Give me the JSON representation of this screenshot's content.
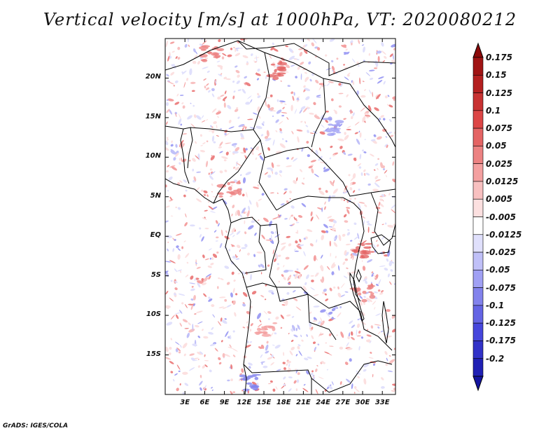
{
  "title": "Vertical velocity [m/s] at 1000hPa, VT: 2020080212",
  "footer": "GrADS: IGES/COLA",
  "map": {
    "lon_range": [
      0,
      35
    ],
    "lat_range": [
      -20,
      25
    ],
    "lat_ticks": [
      {
        "value": 20,
        "label": "20N"
      },
      {
        "value": 15,
        "label": "15N"
      },
      {
        "value": 10,
        "label": "10N"
      },
      {
        "value": 5,
        "label": "5N"
      },
      {
        "value": 0,
        "label": "EQ"
      },
      {
        "value": -5,
        "label": "5S"
      },
      {
        "value": -10,
        "label": "10S"
      },
      {
        "value": -15,
        "label": "15S"
      }
    ],
    "lon_ticks": [
      {
        "value": 3,
        "label": "3E"
      },
      {
        "value": 6,
        "label": "6E"
      },
      {
        "value": 9,
        "label": "9E"
      },
      {
        "value": 12,
        "label": "12E"
      },
      {
        "value": 15,
        "label": "15E"
      },
      {
        "value": 18,
        "label": "18E"
      },
      {
        "value": 21,
        "label": "21E"
      },
      {
        "value": 24,
        "label": "24E"
      },
      {
        "value": 27,
        "label": "27E"
      },
      {
        "value": 30,
        "label": "30E"
      },
      {
        "value": 33,
        "label": "33E"
      }
    ]
  },
  "colorbar": {
    "levels": [
      {
        "label": "0.175",
        "color": "#a01414"
      },
      {
        "label": "0.15",
        "color": "#b42020"
      },
      {
        "label": "0.125",
        "color": "#c83232"
      },
      {
        "label": "0.1",
        "color": "#dc4646"
      },
      {
        "label": "0.075",
        "color": "#e46464"
      },
      {
        "label": "0.05",
        "color": "#ec8282"
      },
      {
        "label": "0.025",
        "color": "#f4a0a0"
      },
      {
        "label": "0.0125",
        "color": "#f8c0c0"
      },
      {
        "label": "0.005",
        "color": "#fce0e0"
      },
      {
        "label": "-0.005",
        "color": "#ffffff"
      },
      {
        "label": "-0.0125",
        "color": "#e0e0fc"
      },
      {
        "label": "-0.025",
        "color": "#c0c0f8"
      },
      {
        "label": "-0.05",
        "color": "#a0a0f4"
      },
      {
        "label": "-0.075",
        "color": "#8282ec"
      },
      {
        "label": "-0.1",
        "color": "#6464e4"
      },
      {
        "label": "-0.125",
        "color": "#4646dc"
      },
      {
        "label": "-0.175",
        "color": "#3232c8"
      },
      {
        "label": "-0.2",
        "color": "#2020b4"
      }
    ],
    "top_triangle_color": "#8c0a0a",
    "bottom_triangle_color": "#1414a0"
  }
}
